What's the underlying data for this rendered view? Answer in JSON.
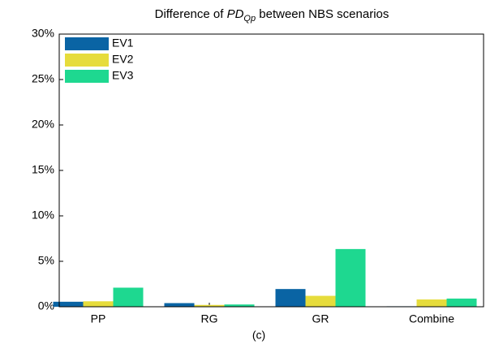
{
  "chart_data": {
    "type": "bar",
    "title": [
      "Difference of ",
      "PD",
      "Qp",
      " between NBS scenarios"
    ],
    "x_label": "(c)",
    "categories": [
      "PP",
      "RG",
      "GR",
      "Combine"
    ],
    "series": [
      {
        "name": "EV1",
        "color": "#0a64a4",
        "values": [
          0.55,
          0.4,
          1.95,
          0.05
        ]
      },
      {
        "name": "EV2",
        "color": "#e6dc3c",
        "values": [
          0.6,
          0.2,
          1.2,
          0.8
        ]
      },
      {
        "name": "EV3",
        "color": "#1ed890",
        "values": [
          2.1,
          0.25,
          6.35,
          0.9
        ]
      }
    ],
    "ylim": [
      0,
      30
    ],
    "yticks": [
      {
        "value": 0,
        "label": "0%"
      },
      {
        "value": 5,
        "label": "5%"
      },
      {
        "value": 10,
        "label": "10%"
      },
      {
        "value": 15,
        "label": "15%"
      },
      {
        "value": 20,
        "label": "20%"
      },
      {
        "value": 25,
        "label": "25%"
      },
      {
        "value": 30,
        "label": "30%"
      }
    ],
    "legend": "upper left"
  }
}
